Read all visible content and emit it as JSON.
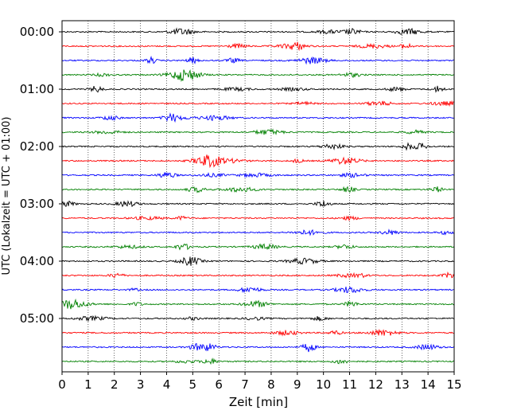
{
  "chart_data": {
    "type": "line",
    "title": "",
    "xlabel": "Zeit  [min]",
    "ylabel": "UTC (Lokalzeit = UTC + 01:00)",
    "xlim": [
      0,
      15
    ],
    "x_ticks": [
      "0",
      "1",
      "2",
      "3",
      "4",
      "5",
      "6",
      "7",
      "8",
      "9",
      "10",
      "11",
      "12",
      "13",
      "14",
      "15"
    ],
    "y_tick_labels": [
      "00:00",
      "01:00",
      "02:00",
      "03:00",
      "04:00",
      "05:00"
    ],
    "row_interval_minutes": 15,
    "row_count": 24,
    "row_start_times": [
      "00:00",
      "00:15",
      "00:30",
      "00:45",
      "01:00",
      "01:15",
      "01:30",
      "01:45",
      "02:00",
      "02:15",
      "02:30",
      "02:45",
      "03:00",
      "03:15",
      "03:30",
      "03:45",
      "04:00",
      "04:15",
      "04:30",
      "04:45",
      "05:00",
      "05:15",
      "05:30",
      "05:45"
    ],
    "row_colors": [
      "#000000",
      "#ff0000",
      "#0000ff",
      "#008000"
    ],
    "vertical_grid": "dotted at each minute",
    "horizontal_grid": false,
    "legend": "none"
  }
}
